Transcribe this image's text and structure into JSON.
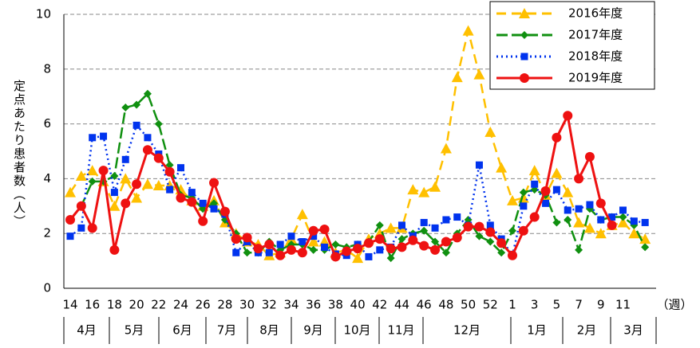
{
  "chart_data": {
    "type": "line",
    "y_label": "定点あたり患者数（人）",
    "x_unit": "（週）",
    "categories": [
      "14",
      null,
      "16",
      null,
      "18",
      null,
      "20",
      null,
      "22",
      null,
      "24",
      null,
      "26",
      null,
      "28",
      null,
      "30",
      null,
      "32",
      null,
      "34",
      null,
      "36",
      null,
      "38",
      null,
      "40",
      null,
      "42",
      null,
      "44",
      null,
      "46",
      null,
      "48",
      null,
      "50",
      null,
      "52",
      null,
      "1",
      null,
      "3",
      null,
      "5",
      null,
      "7",
      null,
      "9",
      null,
      "11",
      null,
      null
    ],
    "months": [
      "4月",
      "5月",
      "6月",
      "7月",
      "8月",
      "9月",
      "10月",
      "11月",
      "12月",
      "1月",
      "2月",
      "3月"
    ],
    "series": [
      {
        "name": "2016年度",
        "color": "#ffc000",
        "marker": "triangle",
        "line_style": "dashed",
        "values": [
          3.5,
          4.1,
          4.3,
          3.9,
          3.0,
          4.0,
          3.3,
          3.8,
          3.75,
          3.75,
          3.6,
          3.2,
          3.0,
          3.2,
          2.4,
          2.0,
          1.7,
          1.6,
          1.2,
          1.3,
          1.8,
          2.7,
          1.7,
          1.7,
          1.3,
          1.4,
          1.1,
          1.8,
          2.0,
          2.2,
          2.2,
          3.6,
          3.5,
          3.7,
          5.1,
          7.7,
          9.4,
          7.8,
          5.7,
          4.4,
          3.2,
          3.3,
          4.3,
          3.4,
          4.2,
          3.5,
          2.4,
          2.2,
          2.0,
          2.3,
          2.4,
          2.0,
          1.8
        ]
      },
      {
        "name": "2017年度",
        "color": "#109010",
        "marker": "diamond",
        "line_style": "long-dashed",
        "values": [
          2.5,
          3.0,
          3.9,
          3.9,
          4.1,
          6.6,
          6.7,
          7.1,
          6.0,
          4.5,
          3.4,
          3.3,
          2.9,
          3.1,
          2.5,
          2.0,
          1.3,
          1.3,
          1.7,
          1.4,
          1.6,
          1.6,
          1.4,
          1.4,
          1.6,
          1.5,
          1.6,
          1.7,
          2.3,
          1.1,
          1.8,
          2.0,
          2.1,
          1.7,
          1.3,
          2.0,
          2.5,
          1.9,
          1.7,
          1.3,
          2.1,
          3.5,
          3.6,
          3.4,
          2.4,
          2.5,
          1.4,
          2.9,
          2.5,
          2.6,
          2.6,
          2.3,
          1.5
        ]
      },
      {
        "name": "2018年度",
        "color": "#0033ee",
        "marker": "square",
        "line_style": "dotted",
        "values": [
          1.9,
          2.2,
          5.5,
          5.55,
          3.5,
          4.7,
          5.95,
          5.5,
          4.9,
          3.6,
          4.4,
          3.5,
          3.1,
          2.9,
          2.7,
          1.3,
          1.7,
          1.3,
          1.3,
          1.6,
          1.9,
          1.7,
          1.9,
          1.5,
          1.25,
          1.2,
          1.6,
          1.15,
          1.4,
          1.5,
          2.3,
          1.9,
          2.4,
          2.2,
          2.5,
          2.6,
          2.3,
          4.5,
          2.3,
          1.8,
          1.2,
          3.0,
          3.8,
          3.1,
          3.6,
          2.85,
          2.9,
          3.05,
          2.5,
          2.6,
          2.85,
          2.45,
          2.4
        ]
      },
      {
        "name": "2019年度",
        "color": "#ee1111",
        "marker": "circle",
        "line_style": "solid",
        "values": [
          2.5,
          3.0,
          2.2,
          4.3,
          1.4,
          3.1,
          3.8,
          5.05,
          4.75,
          4.25,
          3.3,
          3.15,
          2.45,
          3.85,
          2.8,
          1.8,
          1.85,
          1.45,
          1.6,
          1.2,
          1.4,
          1.3,
          2.1,
          2.15,
          1.15,
          1.35,
          1.45,
          1.65,
          1.8,
          1.45,
          1.5,
          1.75,
          1.55,
          1.4,
          1.7,
          1.85,
          2.25,
          2.25,
          2.05,
          1.65,
          1.2,
          2.1,
          2.6,
          3.55,
          5.5,
          6.3,
          4.0,
          4.8,
          3.1,
          2.3,
          null,
          null,
          null
        ]
      }
    ],
    "ylim": [
      0,
      10
    ],
    "yticks": [
      0,
      2,
      4,
      6,
      8,
      10
    ],
    "grid": true,
    "legend": "top-right"
  }
}
